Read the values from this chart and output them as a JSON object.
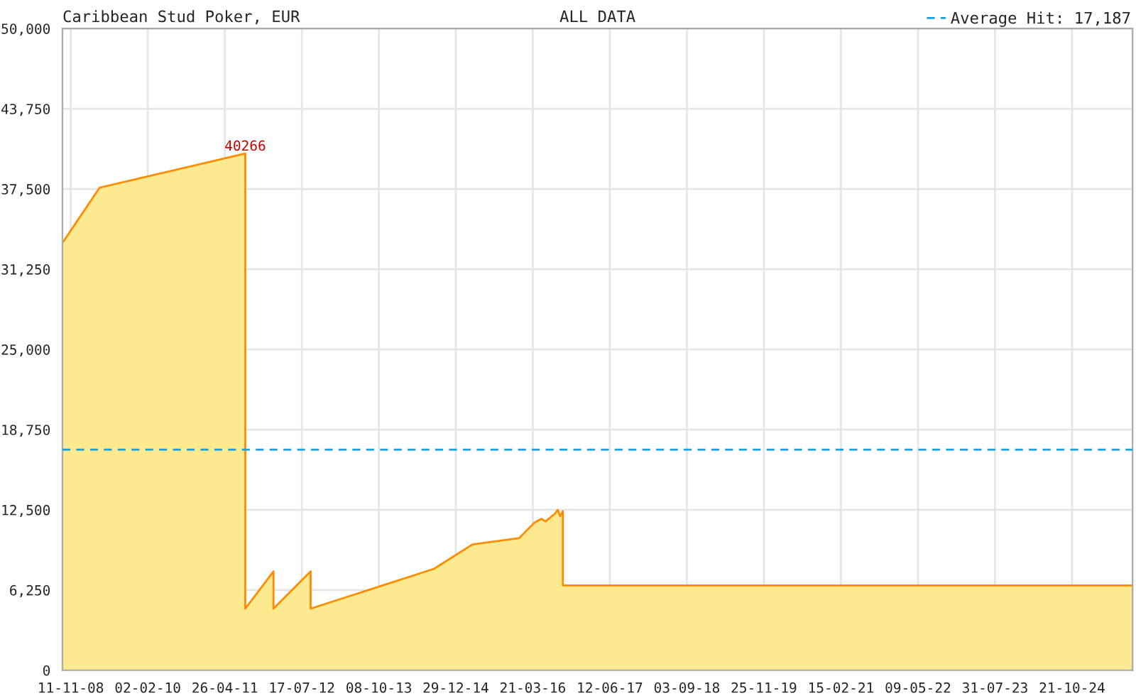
{
  "chart_data": {
    "type": "area",
    "title": "Caribbean Stud Poker, EUR",
    "subtitle": "ALL DATA",
    "x": [
      "2008-09-24",
      "2009-04-28",
      "2011-08-23",
      "2011-08-23",
      "2012-02-03",
      "2012-02-03",
      "2012-09-06",
      "2012-09-06",
      "2014-08-24",
      "2015-04-05",
      "2016-01-02",
      "2016-03-30",
      "2016-05-10",
      "2016-06-03",
      "2016-07-28",
      "2016-08-13",
      "2016-08-27",
      "2016-09-12",
      "2016-09-12",
      "2025-10-08"
    ],
    "series": [
      {
        "color": "#fde98f",
        "values": [
          33300,
          37600,
          40266,
          4800,
          7700,
          4800,
          7700,
          4800,
          7900,
          9800,
          10300,
          11500,
          11800,
          11600,
          12200,
          12500,
          12000,
          12400,
          6600,
          6600
        ],
        "value_labels": [
          null,
          null,
          "40266",
          null,
          null,
          null,
          null,
          null,
          null,
          null,
          null,
          null,
          null,
          null,
          null,
          null,
          null,
          null,
          null,
          null
        ]
      }
    ],
    "xlim": [
      "2008-09-24",
      "2025-10-08"
    ],
    "xticks": [
      {
        "value": "2008-11-11",
        "label": "11-11-08"
      },
      {
        "value": "2010-02-02",
        "label": "02-02-10"
      },
      {
        "value": "2011-04-26",
        "label": "26-04-11"
      },
      {
        "value": "2012-07-17",
        "label": "17-07-12"
      },
      {
        "value": "2013-10-08",
        "label": "08-10-13"
      },
      {
        "value": "2014-12-29",
        "label": "29-12-14"
      },
      {
        "value": "2016-03-21",
        "label": "21-03-16"
      },
      {
        "value": "2017-06-12",
        "label": "12-06-17"
      },
      {
        "value": "2018-09-03",
        "label": "03-09-18"
      },
      {
        "value": "2019-11-25",
        "label": "25-11-19"
      },
      {
        "value": "2021-02-15",
        "label": "15-02-21"
      },
      {
        "value": "2022-05-09",
        "label": "09-05-22"
      },
      {
        "value": "2023-07-31",
        "label": "31-07-23"
      },
      {
        "value": "2024-10-21",
        "label": "21-10-24"
      }
    ],
    "ylim": [
      0,
      50000
    ],
    "yticks": [
      0,
      {
        "value": 6250,
        "label": "6,250"
      },
      {
        "value": 12500,
        "label": "12,500"
      },
      {
        "value": 18750,
        "label": "18,750"
      },
      {
        "value": 25000,
        "label": "25,000"
      },
      {
        "value": 31250,
        "label": "31,250"
      },
      {
        "value": 37500,
        "label": "37,500"
      },
      {
        "value": 43750,
        "label": "43,750"
      },
      {
        "value": 50000,
        "label": "50,000"
      }
    ],
    "grid": true,
    "ref_lines": [
      {
        "axis": "y",
        "value": 17187,
        "label": "Average Hit: 17,187",
        "color": "#1a9fd9",
        "line_style": "dashed"
      }
    ]
  }
}
